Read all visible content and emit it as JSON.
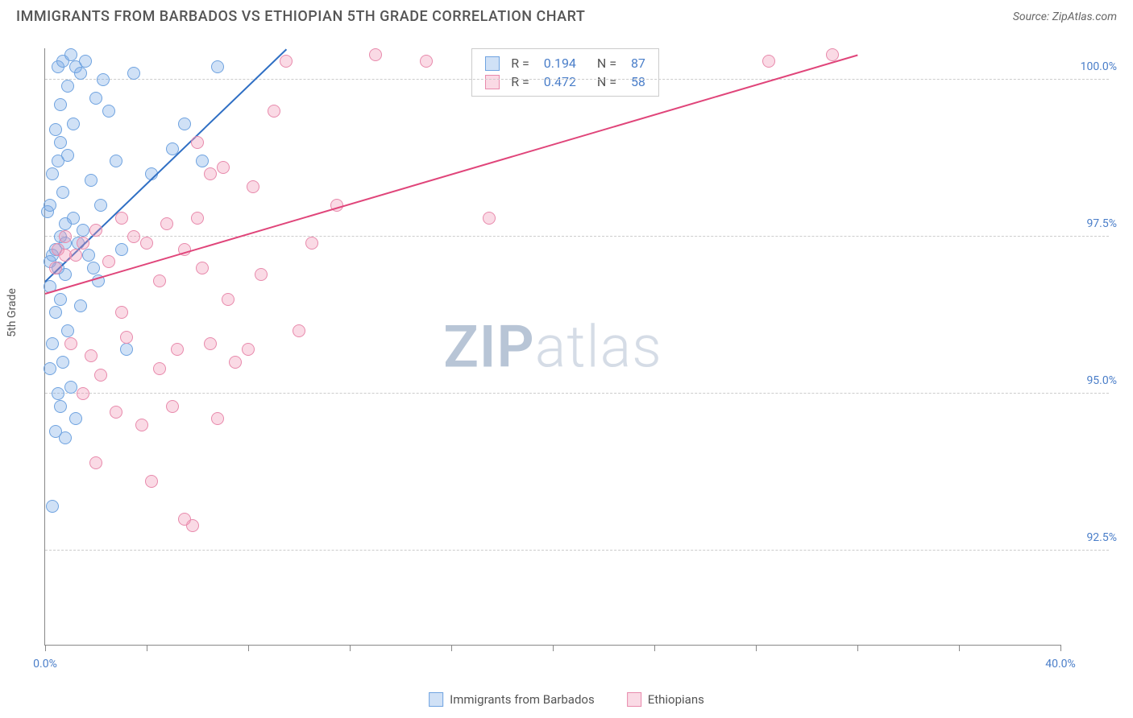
{
  "title": "IMMIGRANTS FROM BARBADOS VS ETHIOPIAN 5TH GRADE CORRELATION CHART",
  "source_label": "Source:",
  "source_value": "ZipAtlas.com",
  "ylabel": "5th Grade",
  "watermark_bold": "ZIP",
  "watermark_light": "atlas",
  "watermark_color_bold": "#b8c5d6",
  "watermark_color_light": "#d5dce6",
  "chart": {
    "type": "scatter",
    "xlim": [
      0,
      40
    ],
    "ylim": [
      91,
      100.5
    ],
    "x_ticks": [
      0,
      4,
      8,
      12,
      16,
      20,
      24,
      28,
      32,
      36,
      40
    ],
    "x_labels": [
      {
        "x": 0,
        "text": "0.0%"
      },
      {
        "x": 40,
        "text": "40.0%"
      }
    ],
    "y_gridlines": [
      92.5,
      95.0,
      97.5,
      100.0
    ],
    "y_labels": [
      "92.5%",
      "95.0%",
      "97.5%",
      "100.0%"
    ],
    "grid_color": "#cccccc",
    "axis_color": "#888888",
    "label_color": "#4a7ec9",
    "series": [
      {
        "name": "Immigrants from Barbados",
        "fill": "rgba(120,170,230,0.35)",
        "stroke": "#6fa3e0",
        "R": "0.194",
        "N": "87",
        "trend": {
          "x1": 0,
          "y1": 96.8,
          "x2": 9.5,
          "y2": 100.5,
          "color": "#2f6fc4"
        },
        "points": [
          [
            0.3,
            97.2
          ],
          [
            0.4,
            97.3
          ],
          [
            0.5,
            97.0
          ],
          [
            0.6,
            97.5
          ],
          [
            0.8,
            97.4
          ],
          [
            0.2,
            97.1
          ],
          [
            0.5,
            100.2
          ],
          [
            0.7,
            100.3
          ],
          [
            1.0,
            100.4
          ],
          [
            1.2,
            100.2
          ],
          [
            1.4,
            100.1
          ],
          [
            1.6,
            100.3
          ],
          [
            0.4,
            99.2
          ],
          [
            0.6,
            99.0
          ],
          [
            0.9,
            98.8
          ],
          [
            0.3,
            98.5
          ],
          [
            0.7,
            98.2
          ],
          [
            1.1,
            97.8
          ],
          [
            1.3,
            97.4
          ],
          [
            1.5,
            97.6
          ],
          [
            0.8,
            96.9
          ],
          [
            0.2,
            96.7
          ],
          [
            0.6,
            96.5
          ],
          [
            0.4,
            96.3
          ],
          [
            0.9,
            96.0
          ],
          [
            0.3,
            95.8
          ],
          [
            0.7,
            95.5
          ],
          [
            1.0,
            95.1
          ],
          [
            0.5,
            95.0
          ],
          [
            1.2,
            94.6
          ],
          [
            0.4,
            94.4
          ],
          [
            0.8,
            94.3
          ],
          [
            0.3,
            93.2
          ],
          [
            2.0,
            99.7
          ],
          [
            2.3,
            100.0
          ],
          [
            2.5,
            99.5
          ],
          [
            2.8,
            98.7
          ],
          [
            1.8,
            98.4
          ],
          [
            2.2,
            98.0
          ],
          [
            1.7,
            97.2
          ],
          [
            1.9,
            97.0
          ],
          [
            2.1,
            96.8
          ],
          [
            3.5,
            100.1
          ],
          [
            3.2,
            95.7
          ],
          [
            3.0,
            97.3
          ],
          [
            4.2,
            98.5
          ],
          [
            5.0,
            98.9
          ],
          [
            5.5,
            99.3
          ],
          [
            6.2,
            98.7
          ],
          [
            6.8,
            100.2
          ],
          [
            0.1,
            97.9
          ],
          [
            0.2,
            98.0
          ],
          [
            0.6,
            99.6
          ],
          [
            0.9,
            99.9
          ],
          [
            1.1,
            99.3
          ],
          [
            0.5,
            98.7
          ],
          [
            0.8,
            97.7
          ],
          [
            1.4,
            96.4
          ],
          [
            0.2,
            95.4
          ],
          [
            0.6,
            94.8
          ]
        ]
      },
      {
        "name": "Ethiopians",
        "fill": "rgba(240,150,180,0.35)",
        "stroke": "#e88aac",
        "R": "0.472",
        "N": "58",
        "trend": {
          "x1": 0,
          "y1": 96.6,
          "x2": 32,
          "y2": 100.4,
          "color": "#e0457a"
        },
        "points": [
          [
            0.5,
            97.3
          ],
          [
            0.8,
            97.5
          ],
          [
            1.2,
            97.2
          ],
          [
            1.5,
            97.4
          ],
          [
            2.0,
            97.6
          ],
          [
            2.5,
            97.1
          ],
          [
            3.0,
            97.8
          ],
          [
            3.5,
            97.5
          ],
          [
            4.0,
            97.4
          ],
          [
            4.8,
            97.7
          ],
          [
            5.5,
            97.3
          ],
          [
            6.0,
            97.8
          ],
          [
            1.0,
            95.8
          ],
          [
            1.8,
            95.6
          ],
          [
            2.2,
            95.3
          ],
          [
            3.2,
            95.9
          ],
          [
            4.5,
            95.4
          ],
          [
            5.2,
            95.7
          ],
          [
            6.5,
            95.8
          ],
          [
            7.5,
            95.5
          ],
          [
            8.0,
            95.7
          ],
          [
            2.8,
            94.7
          ],
          [
            3.8,
            94.5
          ],
          [
            5.0,
            94.8
          ],
          [
            6.8,
            94.6
          ],
          [
            2.0,
            93.9
          ],
          [
            4.2,
            93.6
          ],
          [
            5.8,
            92.9
          ],
          [
            5.5,
            93.0
          ],
          [
            7.2,
            96.5
          ],
          [
            8.5,
            96.9
          ],
          [
            9.0,
            99.5
          ],
          [
            9.5,
            100.3
          ],
          [
            10.5,
            97.4
          ],
          [
            11.5,
            98.0
          ],
          [
            13.0,
            100.4
          ],
          [
            15.0,
            100.3
          ],
          [
            17.5,
            97.8
          ],
          [
            28.5,
            100.3
          ],
          [
            31.0,
            100.4
          ],
          [
            0.4,
            97.0
          ],
          [
            0.8,
            97.2
          ],
          [
            1.5,
            95.0
          ],
          [
            3.0,
            96.3
          ],
          [
            4.5,
            96.8
          ],
          [
            6.2,
            97.0
          ],
          [
            7.0,
            98.6
          ],
          [
            8.2,
            98.3
          ],
          [
            10.0,
            96.0
          ],
          [
            6.0,
            99.0
          ],
          [
            6.5,
            98.5
          ]
        ]
      }
    ]
  },
  "legend_stats": {
    "R_label": "R  =",
    "N_label": "N  ="
  },
  "marker_radius": 8
}
